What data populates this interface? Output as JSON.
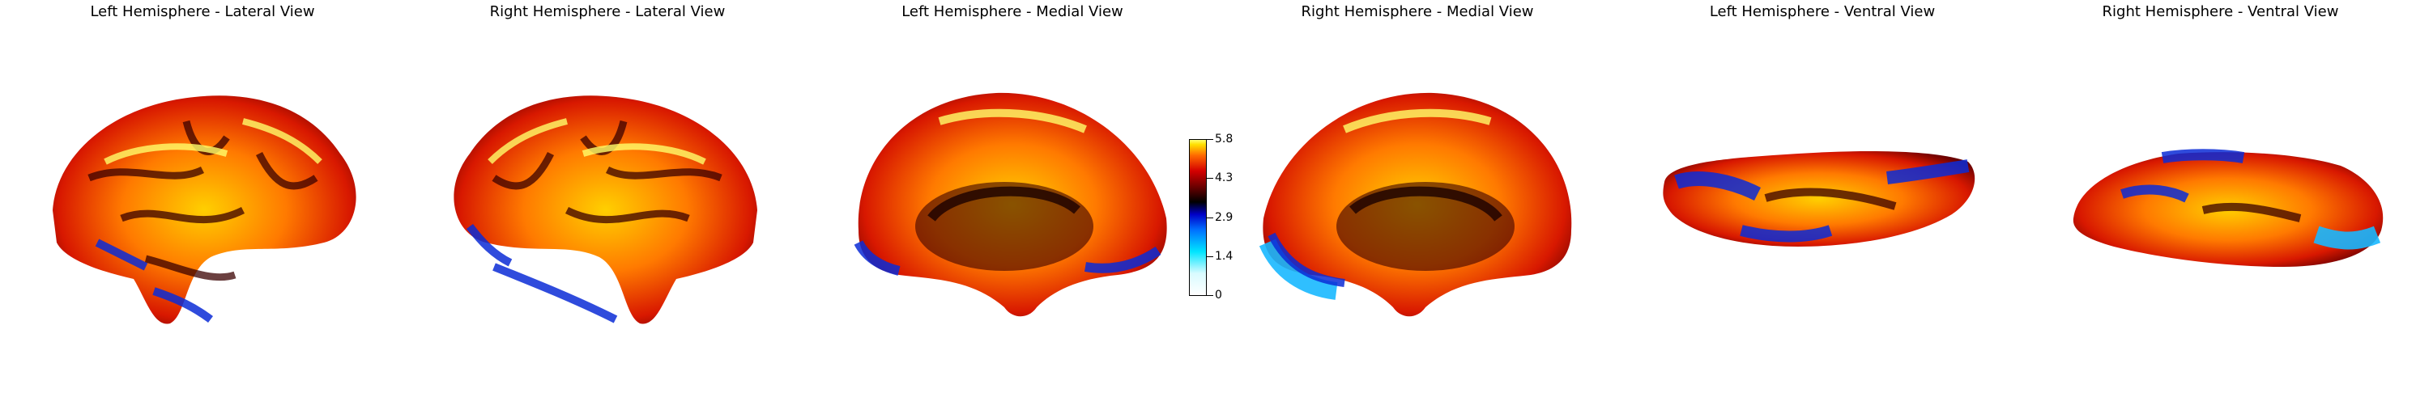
{
  "panels": [
    {
      "title": "Left Hemisphere - Lateral View"
    },
    {
      "title": "Right Hemisphere - Lateral View"
    },
    {
      "title": "Left Hemisphere - Medial View"
    },
    {
      "title": "Right Hemisphere - Medial View"
    },
    {
      "title": "Left Hemisphere - Ventral View"
    },
    {
      "title": "Right Hemisphere - Ventral View"
    }
  ],
  "colorbar": {
    "ticks": [
      "5.8",
      "4.3",
      "2.9",
      "1.4",
      "0"
    ],
    "colormap": [
      "#ffffff",
      "#00e5ff",
      "#0000c8",
      "#000000",
      "#d40000",
      "#ff6a00",
      "#ffff70"
    ]
  }
}
